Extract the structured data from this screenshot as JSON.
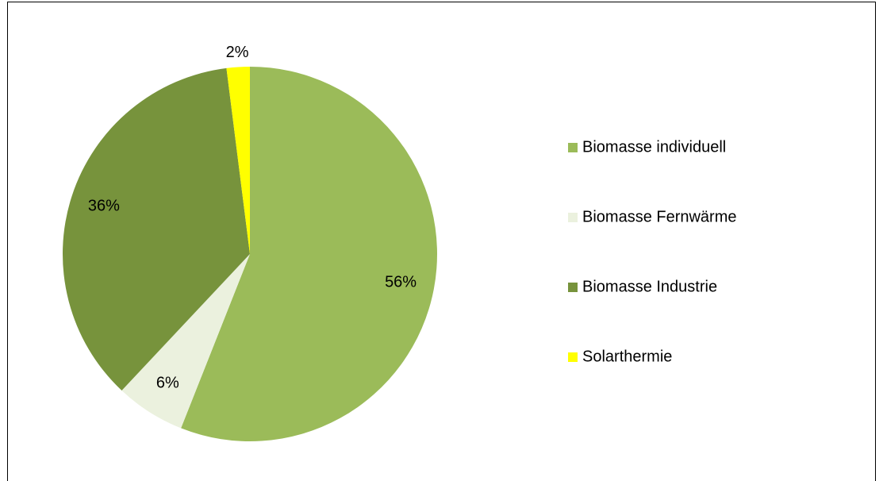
{
  "chart_data": {
    "type": "pie",
    "categories": [
      "Biomasse individuell",
      "Biomasse Fernwärme",
      "Biomasse Industrie",
      "Solarthermie"
    ],
    "values": [
      56,
      6,
      36,
      2
    ],
    "value_labels": [
      "56%",
      "6%",
      "36%",
      "2%"
    ],
    "colors": [
      "#9bbb59",
      "#ebf1de",
      "#77933c",
      "#ffff00"
    ],
    "legend": "right"
  }
}
